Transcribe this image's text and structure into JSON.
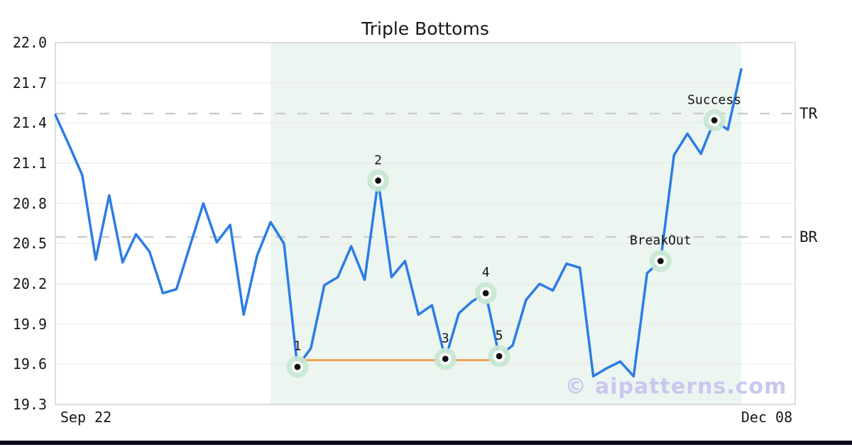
{
  "watermark": "© aipatterns.com",
  "chart_data": {
    "type": "line",
    "title": "Triple Bottoms",
    "xlabel": "",
    "ylabel": "",
    "ylim": [
      19.3,
      22.0
    ],
    "grid": true,
    "y_tick_labels": [
      "19.3",
      "19.6",
      "19.9",
      "20.2",
      "20.5",
      "20.8",
      "21.1",
      "21.4",
      "21.7",
      "22.0"
    ],
    "x_tick_labels": [
      "Sep 22",
      "Dec 08"
    ],
    "series": [
      {
        "name": "price",
        "values": [
          21.46,
          21.24,
          21.01,
          20.38,
          20.86,
          20.36,
          20.57,
          20.44,
          20.13,
          20.16,
          20.48,
          20.8,
          20.51,
          20.64,
          19.97,
          20.41,
          20.66,
          20.5,
          19.58,
          19.72,
          20.19,
          20.25,
          20.48,
          20.23,
          20.97,
          20.25,
          20.37,
          19.97,
          20.04,
          19.64,
          19.98,
          20.07,
          20.13,
          19.66,
          19.74,
          20.08,
          20.2,
          20.15,
          20.35,
          20.32,
          19.51,
          19.57,
          19.62,
          19.51,
          20.28,
          20.37,
          21.16,
          21.32,
          21.17,
          21.42,
          21.35,
          21.8
        ]
      }
    ],
    "levels": [
      {
        "label": "TR",
        "value": 21.47
      },
      {
        "label": "BR",
        "value": 20.55
      }
    ],
    "neckline": {
      "value": 19.63,
      "from_index": 18,
      "to_index": 33
    },
    "pattern_region": {
      "from_index": 16,
      "to_index": 51
    },
    "annotations": [
      {
        "label": "1",
        "index": 18,
        "value": 19.58
      },
      {
        "label": "2",
        "index": 24,
        "value": 20.97
      },
      {
        "label": "3",
        "index": 29,
        "value": 19.64
      },
      {
        "label": "4",
        "index": 32,
        "value": 20.13
      },
      {
        "label": "5",
        "index": 33,
        "value": 19.66
      },
      {
        "label": "BreakOut",
        "index": 45,
        "value": 20.37
      },
      {
        "label": "Success",
        "index": 49,
        "value": 21.42
      }
    ],
    "colors": {
      "line": "#2b7ce5",
      "neckline": "#f0a255",
      "pattern_region": "#edf5f1",
      "level_dash": "#cbcbcb",
      "grid": "#e7e7e7",
      "border": "#d4d4d4",
      "marker_halo": "#c7e7d3",
      "marker_ring": "#ffffff",
      "marker_dot": "#111111",
      "watermark": "#c8c8ef",
      "footer_bar": "#0a0a1a"
    }
  }
}
